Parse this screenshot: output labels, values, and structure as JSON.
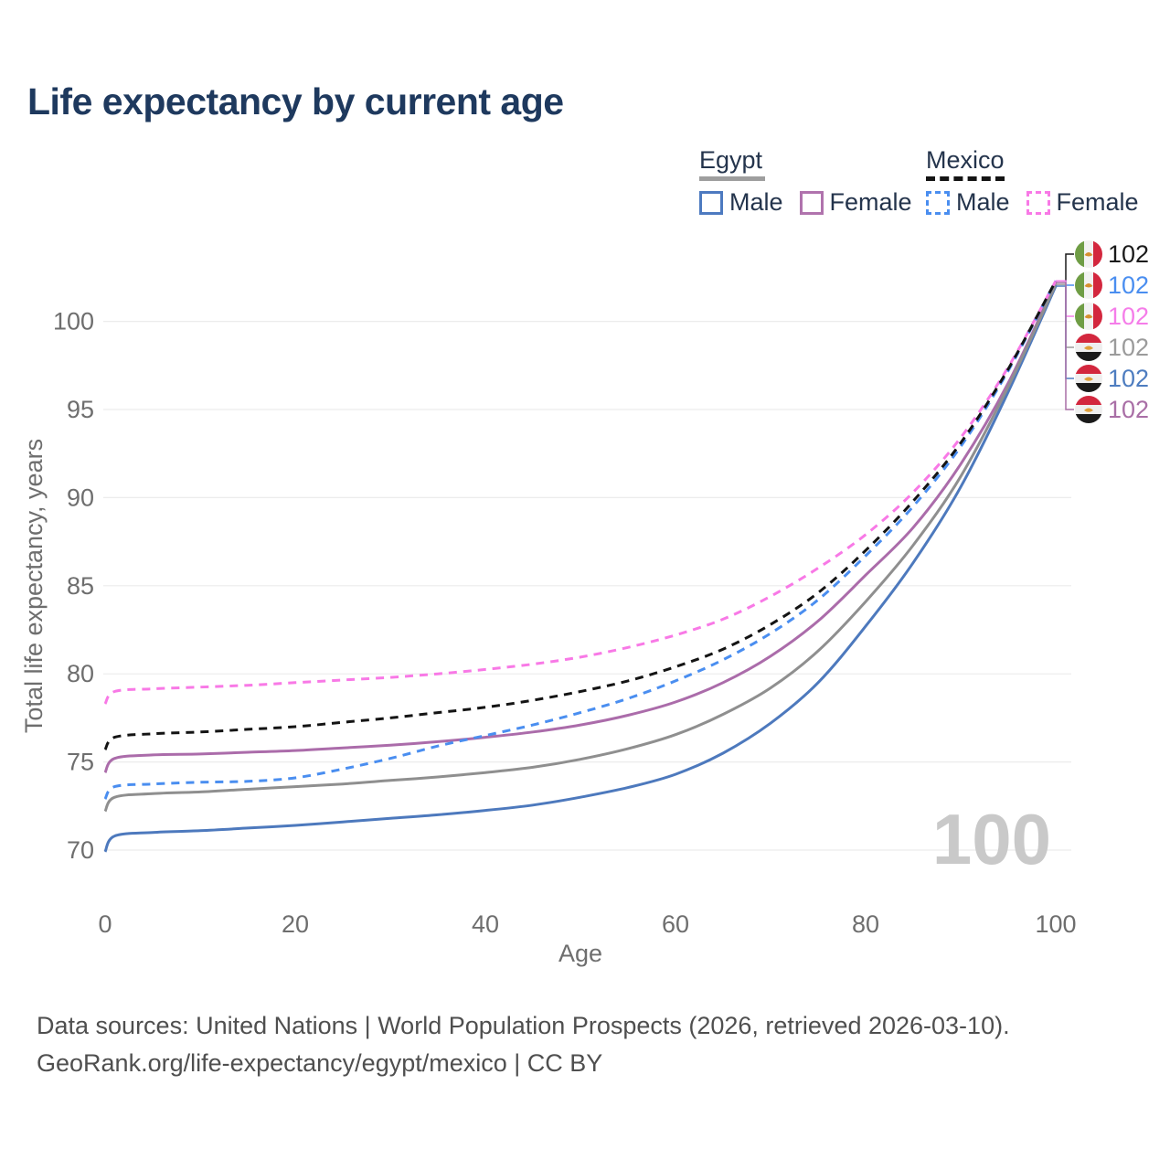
{
  "header": {
    "title": "Life expectancy by current age"
  },
  "legend": {
    "egypt": {
      "title": "Egypt",
      "male_label": "Male",
      "female_label": "Female"
    },
    "mexico": {
      "title": "Mexico",
      "male_label": "Male",
      "female_label": "Female"
    }
  },
  "chart_data": {
    "type": "line",
    "title": "Life expectancy by current age",
    "xlabel": "Age",
    "ylabel": "Total life expectancy, years",
    "xlim": [
      0,
      100
    ],
    "ylim": [
      68.5,
      103
    ],
    "x_ticks": [
      0,
      20,
      40,
      60,
      80,
      100
    ],
    "y_ticks": [
      70,
      75,
      80,
      85,
      90,
      95,
      100
    ],
    "grid": "horizontal",
    "legend_position": "top-right",
    "x": [
      0,
      1,
      5,
      10,
      15,
      20,
      25,
      30,
      35,
      40,
      45,
      50,
      55,
      60,
      65,
      70,
      75,
      80,
      85,
      90,
      95,
      100
    ],
    "series": [
      {
        "name": "Mexico Total",
        "country": "Mexico",
        "group": "total",
        "style": "dashed",
        "color": "#141414",
        "values": [
          75.7,
          76.4,
          76.6,
          76.7,
          76.85,
          77.0,
          77.25,
          77.5,
          77.8,
          78.1,
          78.5,
          79.0,
          79.6,
          80.4,
          81.4,
          82.8,
          84.6,
          87.0,
          89.8,
          93.1,
          97.3,
          102.3
        ]
      },
      {
        "name": "Mexico Male",
        "country": "Mexico",
        "group": "male",
        "style": "dashed",
        "color": "#4a8ef0",
        "values": [
          72.9,
          73.6,
          73.75,
          73.85,
          73.9,
          74.1,
          74.6,
          75.2,
          75.9,
          76.5,
          77.1,
          77.8,
          78.6,
          79.6,
          80.8,
          82.3,
          84.2,
          86.7,
          89.5,
          92.9,
          97.2,
          102.3
        ]
      },
      {
        "name": "Mexico Female",
        "country": "Mexico",
        "group": "female",
        "style": "dashed",
        "color": "#f879e6",
        "values": [
          78.3,
          79.0,
          79.15,
          79.25,
          79.35,
          79.5,
          79.65,
          79.8,
          80.0,
          80.25,
          80.55,
          80.95,
          81.5,
          82.2,
          83.1,
          84.4,
          86.0,
          87.9,
          90.3,
          93.4,
          97.4,
          102.3
        ]
      },
      {
        "name": "Egypt Total",
        "country": "Egypt",
        "group": "total",
        "style": "solid",
        "color": "#8f8f8f",
        "values": [
          72.2,
          73.0,
          73.2,
          73.3,
          73.45,
          73.6,
          73.75,
          73.95,
          74.15,
          74.4,
          74.7,
          75.15,
          75.75,
          76.55,
          77.7,
          79.2,
          81.3,
          84.1,
          87.3,
          91.2,
          96.3,
          102.1
        ]
      },
      {
        "name": "Egypt Male",
        "country": "Egypt",
        "group": "male",
        "style": "solid",
        "color": "#4d79bd",
        "values": [
          69.9,
          70.8,
          71.0,
          71.1,
          71.25,
          71.4,
          71.6,
          71.8,
          72.0,
          72.25,
          72.55,
          73.0,
          73.55,
          74.3,
          75.5,
          77.2,
          79.5,
          82.7,
          86.3,
          90.6,
          96.0,
          102.0
        ]
      },
      {
        "name": "Egypt Female",
        "country": "Egypt",
        "group": "female",
        "style": "solid",
        "color": "#ab6caa",
        "values": [
          74.4,
          75.2,
          75.4,
          75.45,
          75.55,
          75.65,
          75.8,
          75.95,
          76.15,
          76.4,
          76.7,
          77.1,
          77.65,
          78.4,
          79.5,
          81.0,
          83.0,
          85.6,
          88.3,
          91.9,
          96.5,
          102.2
        ]
      }
    ],
    "end_labels": [
      {
        "flag": "mexico",
        "value": "102",
        "color": "#1a1a1a"
      },
      {
        "flag": "mexico",
        "value": "102",
        "color": "#4a8ef0"
      },
      {
        "flag": "mexico",
        "value": "102",
        "color": "#f57de9"
      },
      {
        "flag": "egypt",
        "value": "102",
        "color": "#9b9b9b"
      },
      {
        "flag": "egypt",
        "value": "102",
        "color": "#4e7dc0"
      },
      {
        "flag": "egypt",
        "value": "102",
        "color": "#a96fa6"
      }
    ],
    "watermark": "100"
  },
  "footer": {
    "line1": "Data sources: United Nations | World Population Prospects (2026, retrieved 2026-03-10).",
    "line2": "GeoRank.org/life-expectancy/egypt/mexico | CC BY"
  }
}
